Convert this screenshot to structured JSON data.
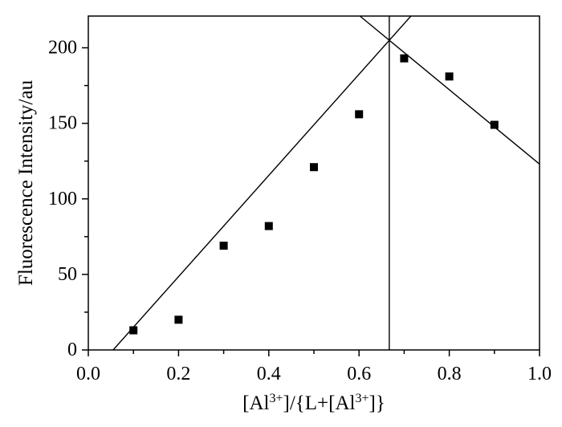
{
  "chart_data": {
    "type": "scatter",
    "title": "",
    "xlabel": {
      "parts": [
        "[Al",
        "3+",
        "]/{L+[Al",
        "3+",
        "]}"
      ]
    },
    "ylabel": "Fluorescence Intensity/au",
    "xlim": [
      0.0,
      1.0
    ],
    "ylim": [
      0,
      221
    ],
    "xticks": [
      "0.0",
      "0.2",
      "0.4",
      "0.6",
      "0.8",
      "1.0"
    ],
    "yticks": [
      "0",
      "50",
      "100",
      "150",
      "200"
    ],
    "grid": false,
    "legend": "none",
    "marker": "square",
    "color": "#000000",
    "series": [
      {
        "x": [
          0.1,
          0.2,
          0.3,
          0.4,
          0.5,
          0.6,
          0.7,
          0.8,
          0.9
        ],
        "y": [
          13,
          20,
          69,
          82,
          121,
          156,
          193,
          181,
          149
        ]
      }
    ],
    "fit_lines": [
      {
        "x": [
          0.055,
          0.715
        ],
        "y": [
          0,
          221
        ]
      },
      {
        "x": [
          0.602,
          1.0
        ],
        "y": [
          221,
          123
        ]
      },
      {
        "x": [
          0.667,
          0.667
        ],
        "y": [
          0,
          221
        ]
      }
    ]
  }
}
